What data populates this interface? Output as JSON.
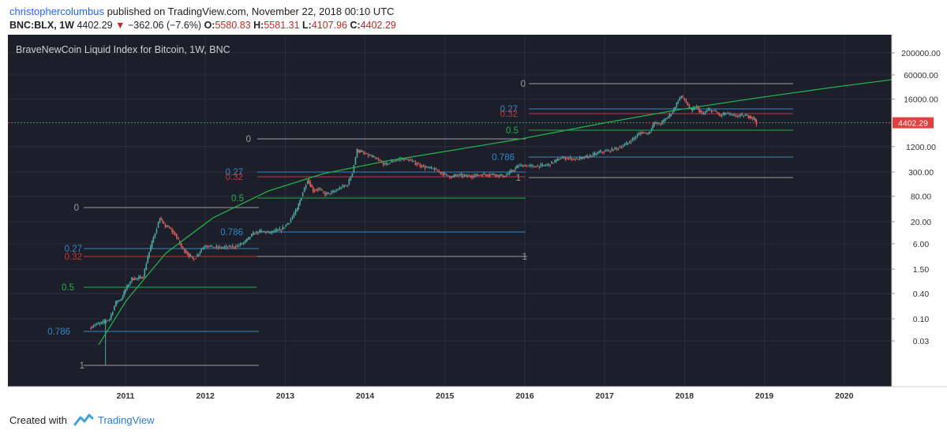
{
  "header": {
    "author": "christophercolumbus",
    "published_text": "published on TradingView.com, November 22, 2018 00:10 UTC",
    "symbol": "BNC:BLX, 1W",
    "last_price": "4402.29",
    "change": "−362.06 (−7.6%)",
    "open_label": "O:",
    "open_value": "5580.83",
    "high_label": "H:",
    "high_value": "5581.31",
    "low_label": "L:",
    "low_value": "4107.96",
    "close_label": "C:",
    "close_value": "4402.29"
  },
  "chart_data": {
    "type": "candlestick",
    "title": "BraveNewCoin Liquid Index for Bitcoin, 1W, BNC",
    "y_scale": "log",
    "y_tick_labels": [
      "200000.00",
      "60000.00",
      "16000.00",
      "1200.00",
      "300.00",
      "80.00",
      "20.00",
      "6.00",
      "1.50",
      "0.40",
      "0.10",
      "0.03"
    ],
    "x_tick_labels": [
      "2011",
      "2012",
      "2013",
      "2014",
      "2015",
      "2016",
      "2017",
      "2018",
      "2019",
      "2020"
    ],
    "current_price_label": "4402.29",
    "price_path": [
      [
        2010.55,
        0.06
      ],
      [
        2010.6,
        0.07
      ],
      [
        2010.7,
        0.08
      ],
      [
        2010.8,
        0.1
      ],
      [
        2010.88,
        0.25
      ],
      [
        2010.95,
        0.3
      ],
      [
        2011.0,
        0.5
      ],
      [
        2011.08,
        0.9
      ],
      [
        2011.15,
        0.9
      ],
      [
        2011.22,
        1.0
      ],
      [
        2011.28,
        3.0
      ],
      [
        2011.35,
        8.5
      ],
      [
        2011.43,
        24
      ],
      [
        2011.48,
        17
      ],
      [
        2011.55,
        14
      ],
      [
        2011.62,
        10
      ],
      [
        2011.7,
        5
      ],
      [
        2011.78,
        3.4
      ],
      [
        2011.85,
        2.6
      ],
      [
        2011.9,
        3.2
      ],
      [
        2011.95,
        4.5
      ],
      [
        2012.0,
        5.5
      ],
      [
        2012.1,
        5
      ],
      [
        2012.2,
        4.9
      ],
      [
        2012.3,
        5.0
      ],
      [
        2012.4,
        5.3
      ],
      [
        2012.5,
        6.8
      ],
      [
        2012.6,
        10.5
      ],
      [
        2012.7,
        12
      ],
      [
        2012.8,
        11
      ],
      [
        2012.95,
        13
      ],
      [
        2013.05,
        20
      ],
      [
        2013.15,
        40
      ],
      [
        2013.22,
        100
      ],
      [
        2013.28,
        200
      ],
      [
        2013.35,
        110
      ],
      [
        2013.42,
        120
      ],
      [
        2013.5,
        90
      ],
      [
        2013.6,
        100
      ],
      [
        2013.7,
        130
      ],
      [
        2013.78,
        150
      ],
      [
        2013.84,
        300
      ],
      [
        2013.9,
        1000
      ],
      [
        2013.95,
        900
      ],
      [
        2014.0,
        800
      ],
      [
        2014.08,
        700
      ],
      [
        2014.15,
        600
      ],
      [
        2014.25,
        450
      ],
      [
        2014.35,
        550
      ],
      [
        2014.45,
        620
      ],
      [
        2014.55,
        580
      ],
      [
        2014.65,
        470
      ],
      [
        2014.75,
        390
      ],
      [
        2014.85,
        360
      ],
      [
        2015.0,
        260
      ],
      [
        2015.08,
        230
      ],
      [
        2015.15,
        255
      ],
      [
        2015.3,
        240
      ],
      [
        2015.45,
        260
      ],
      [
        2015.6,
        265
      ],
      [
        2015.75,
        240
      ],
      [
        2015.85,
        330
      ],
      [
        2015.92,
        420
      ],
      [
        2016.0,
        430
      ],
      [
        2016.1,
        410
      ],
      [
        2016.2,
        420
      ],
      [
        2016.3,
        450
      ],
      [
        2016.45,
        650
      ],
      [
        2016.55,
        640
      ],
      [
        2016.65,
        600
      ],
      [
        2016.8,
        700
      ],
      [
        2016.95,
        900
      ],
      [
        2017.05,
        950
      ],
      [
        2017.15,
        1100
      ],
      [
        2017.25,
        1300
      ],
      [
        2017.35,
        1800
      ],
      [
        2017.45,
        2600
      ],
      [
        2017.55,
        2500
      ],
      [
        2017.62,
        4300
      ],
      [
        2017.7,
        4200
      ],
      [
        2017.78,
        5800
      ],
      [
        2017.85,
        8000
      ],
      [
        2017.92,
        15000
      ],
      [
        2017.96,
        19000
      ],
      [
        2018.02,
        13500
      ],
      [
        2018.08,
        8500
      ],
      [
        2018.15,
        10500
      ],
      [
        2018.22,
        7000
      ],
      [
        2018.3,
        9000
      ],
      [
        2018.38,
        8200
      ],
      [
        2018.45,
        6500
      ],
      [
        2018.52,
        7500
      ],
      [
        2018.6,
        6500
      ],
      [
        2018.7,
        6500
      ],
      [
        2018.8,
        6400
      ],
      [
        2018.87,
        5600
      ],
      [
        2018.9,
        4400
      ]
    ],
    "growth_curve": {
      "color": "#22b04a"
    },
    "fib_sets": [
      {
        "levels": [
          {
            "label": "0",
            "color": "#9e9e9e"
          },
          {
            "label": "0.27",
            "color": "#2f88c8"
          },
          {
            "label": "0.32",
            "color": "#c83232"
          },
          {
            "label": "0.5",
            "color": "#22b04a"
          },
          {
            "label": "0.786",
            "color": "#2f88c8"
          },
          {
            "label": "1",
            "color": "#9e9e9e"
          }
        ]
      },
      {
        "levels": [
          {
            "label": "0",
            "color": "#9e9e9e"
          },
          {
            "label": "0.27",
            "color": "#2f88c8"
          },
          {
            "label": "0.32",
            "color": "#c83232"
          },
          {
            "label": "0.5",
            "color": "#22b04a"
          },
          {
            "label": "0.786",
            "color": "#2f88c8"
          },
          {
            "label": "1",
            "color": "#9e9e9e"
          }
        ]
      },
      {
        "levels": [
          {
            "label": "0",
            "color": "#9e9e9e"
          },
          {
            "label": "0.27",
            "color": "#2f88c8"
          },
          {
            "label": "0.32",
            "color": "#c83232"
          },
          {
            "label": "0.5",
            "color": "#22b04a"
          },
          {
            "label": "0.786",
            "color": "#2f88c8"
          },
          {
            "label": "1",
            "color": "#9e9e9e"
          }
        ]
      }
    ],
    "colors": {
      "background": "#1c1e2a",
      "grid": "#2b2e3b",
      "up": "#4ea8a0",
      "down": "#e06060",
      "text": "#c8c8c8"
    }
  },
  "footer": {
    "created_with": "Created with",
    "brand": "TradingView"
  }
}
